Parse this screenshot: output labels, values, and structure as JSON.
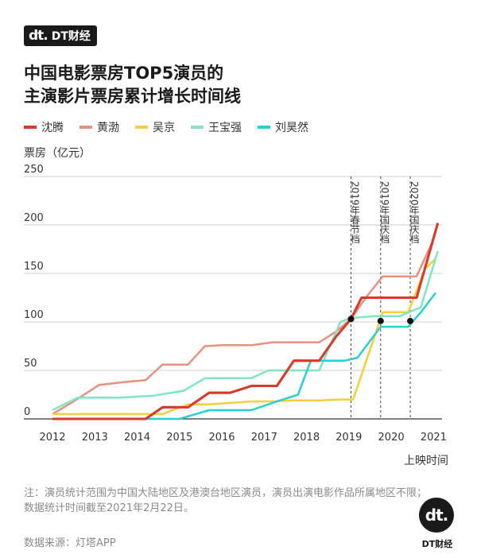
{
  "brand": {
    "mark": "dt.",
    "name": "DT财经"
  },
  "title_line1": "中国电影票房TOP5演员的",
  "title_line2": "主演影片票房累计增长时间线",
  "note": "注：演员统计范围为中国大陆地区及港澳台地区演员，演员出演电影作品所属地区不限；数据统计时间截至2021年2月22日。",
  "source": "数据来源：灯塔APP",
  "logo": {
    "mark": "dt.",
    "name": "DT财经"
  },
  "chart_data": {
    "type": "line",
    "ylabel": "票房（亿元）",
    "xlabel": "上映时间",
    "ylim": [
      0,
      250
    ],
    "xlim": [
      2012,
      2021.2
    ],
    "yticks": [
      0,
      50,
      100,
      150,
      200,
      250
    ],
    "xticks": [
      2012,
      2013,
      2014,
      2015,
      2016,
      2017,
      2018,
      2019,
      2020,
      2021
    ],
    "grid": "horizontal",
    "legend_position": "top",
    "series": [
      {
        "name": "沈腾",
        "color": "#d63b2b",
        "x": [
          2012,
          2014.2,
          2014.6,
          2015.2,
          2015.7,
          2016.2,
          2016.7,
          2017.3,
          2017.7,
          2018.3,
          2018.7,
          2019.05,
          2019.3,
          2020.6,
          2021.1
        ],
        "y": [
          0,
          0,
          12,
          12,
          27,
          27,
          34,
          34,
          60,
          60,
          85,
          103,
          125,
          125,
          202
        ]
      },
      {
        "name": "黄渤",
        "color": "#eb8f7f",
        "x": [
          2012,
          2012.5,
          2013.1,
          2013.7,
          2014.2,
          2014.6,
          2015.2,
          2015.6,
          2016,
          2016.7,
          2017.2,
          2017.7,
          2018.3,
          2018.7,
          2019.05,
          2019.4,
          2019.8,
          2020.6,
          2021
        ],
        "y": [
          5,
          18,
          35,
          38,
          40,
          56,
          56,
          75,
          76,
          76,
          79,
          79,
          79,
          90,
          103,
          125,
          147,
          147,
          185
        ]
      },
      {
        "name": "吴京",
        "color": "#f5cf3a",
        "x": [
          2012,
          2014.6,
          2015.2,
          2015.7,
          2016.7,
          2017.2,
          2017.7,
          2018.3,
          2018.8,
          2019.1,
          2019.8,
          2020.4,
          2020.8,
          2021.05
        ],
        "y": [
          5,
          5,
          15,
          15,
          18,
          18,
          19,
          19,
          20,
          20,
          110,
          110,
          155,
          165
        ]
      },
      {
        "name": "王宝强",
        "color": "#7ee6c4",
        "x": [
          2012,
          2012.6,
          2013.6,
          2014.4,
          2015.1,
          2015.6,
          2016.7,
          2017.1,
          2017.7,
          2018.3,
          2018.8,
          2019.05,
          2019.6,
          2020.2,
          2020.7,
          2021.1
        ],
        "y": [
          9,
          22,
          22,
          24,
          29,
          42,
          42,
          50,
          50,
          50,
          100,
          104,
          106,
          106,
          115,
          173
        ]
      },
      {
        "name": "刘昊然",
        "color": "#27cfd6",
        "x": [
          2012,
          2015,
          2015.7,
          2016.7,
          2017.3,
          2017.8,
          2018.1,
          2018.9,
          2019.2,
          2019.75,
          2020.4,
          2020.7,
          2021.05
        ],
        "y": [
          0,
          0,
          9,
          9,
          18,
          25,
          60,
          60,
          63,
          95,
          95,
          110,
          130
        ]
      }
    ],
    "annotations": [
      {
        "label": "2019年春节档",
        "x": 2019.05,
        "y": 103
      },
      {
        "label": "2019年国庆档",
        "x": 2019.75,
        "y": 101
      },
      {
        "label": "2020年国庆档",
        "x": 2020.45,
        "y": 101
      }
    ]
  }
}
